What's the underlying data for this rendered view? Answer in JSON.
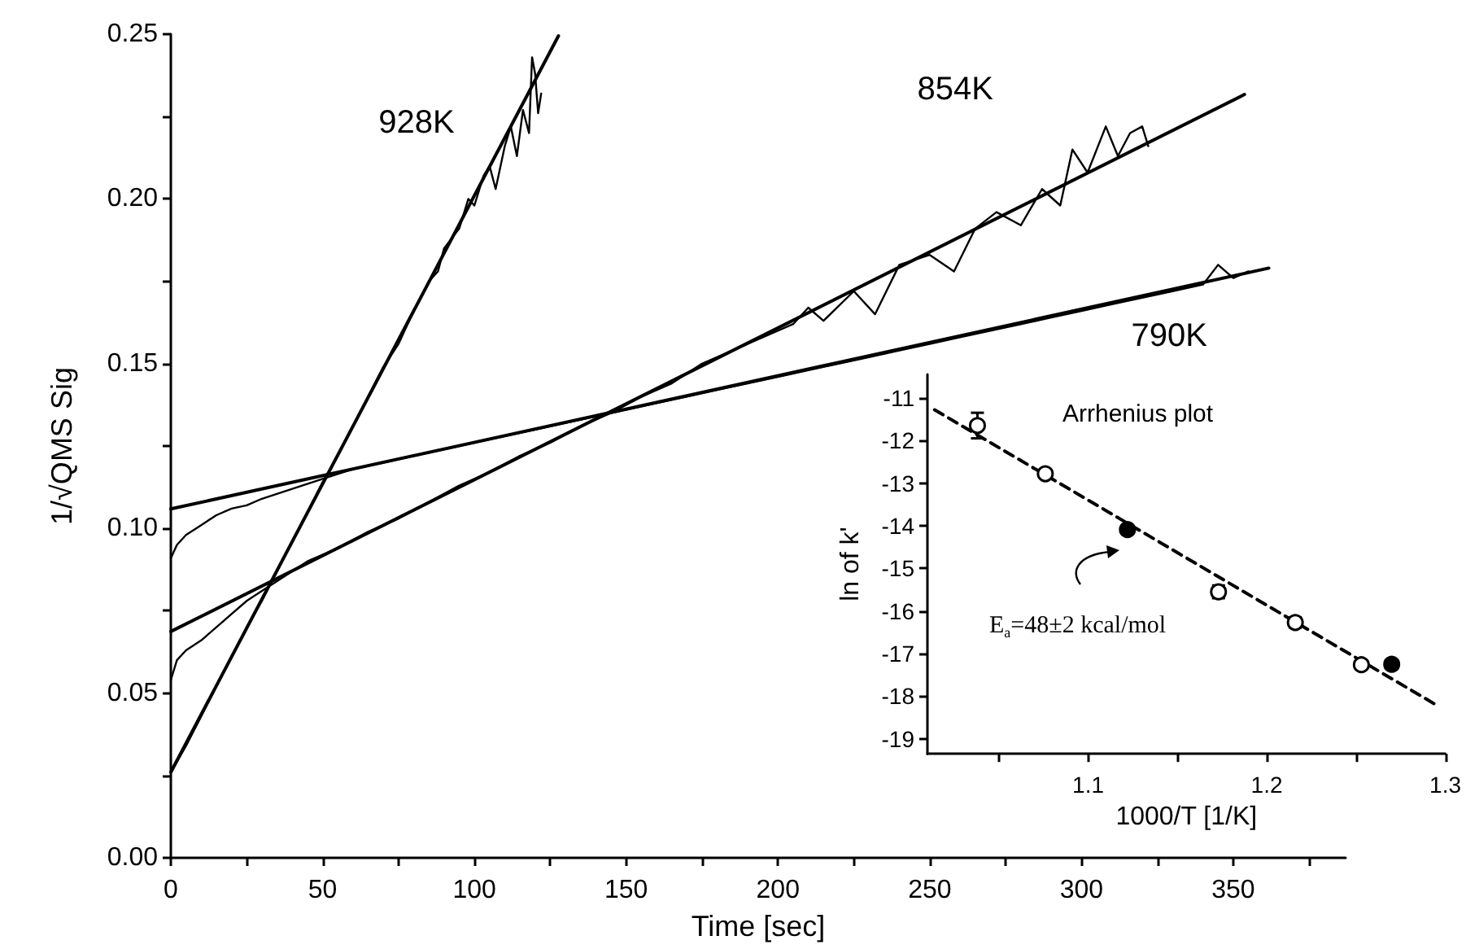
{
  "chart_data": [
    {
      "type": "line",
      "xlabel": "Time [sec]",
      "ylabel": "1/√QMS Sig",
      "xlim": [
        0,
        387
      ],
      "ylim": [
        0,
        0.25
      ],
      "xticks": [
        0,
        {
          "value": 25,
          "label": null
        },
        50,
        {
          "value": 75,
          "label": null
        },
        100,
        {
          "value": 125,
          "label": null
        },
        150,
        {
          "value": 175,
          "label": null
        },
        200,
        {
          "value": 225,
          "label": null
        },
        250,
        {
          "value": 275,
          "label": null
        },
        300,
        {
          "value": 325,
          "label": null
        },
        350,
        {
          "value": 375,
          "label": null
        }
      ],
      "yticks": [
        {
          "value": 0,
          "label": "0.00"
        },
        {
          "value": 0.025,
          "label": null
        },
        {
          "value": 0.05,
          "label": "0.05"
        },
        {
          "value": 0.075,
          "label": null
        },
        {
          "value": 0.1,
          "label": "0.10"
        },
        {
          "value": 0.125,
          "label": null
        },
        {
          "value": 0.15,
          "label": "0.15"
        },
        {
          "value": 0.175,
          "label": null
        },
        {
          "value": 0.2,
          "label": "0.20"
        },
        {
          "value": 0.225,
          "label": null
        },
        {
          "value": 0.25,
          "label": "0.25"
        }
      ],
      "marker": "none",
      "line_style": "solid",
      "series": [
        {
          "name": "928K",
          "color": "#000000",
          "x": [
            0,
            5,
            10,
            15,
            20,
            25,
            30,
            35,
            40,
            45,
            50,
            55,
            60,
            65,
            70,
            75,
            80,
            85,
            88,
            90,
            95,
            98,
            100,
            103,
            105,
            107,
            110,
            112,
            114,
            116,
            118,
            119,
            120,
            121,
            122
          ],
          "values": [
            0.026,
            0.034,
            0.043,
            0.052,
            0.061,
            0.07,
            0.078,
            0.087,
            0.096,
            0.105,
            0.114,
            0.122,
            0.131,
            0.14,
            0.149,
            0.156,
            0.166,
            0.175,
            0.178,
            0.185,
            0.191,
            0.2,
            0.198,
            0.207,
            0.21,
            0.203,
            0.216,
            0.222,
            0.213,
            0.227,
            0.22,
            0.243,
            0.238,
            0.226,
            0.232
          ]
        },
        {
          "name": "854K",
          "color": "#000000",
          "x": [
            0,
            2,
            5,
            10,
            15,
            20,
            25,
            30,
            35,
            45,
            55,
            65,
            75,
            85,
            95,
            105,
            115,
            125,
            135,
            145,
            155,
            165,
            175,
            185,
            195,
            205,
            210,
            215,
            225,
            232,
            240,
            250,
            258,
            265,
            272,
            280,
            287,
            293,
            297,
            302,
            308,
            312,
            316,
            320,
            322
          ],
          "values": [
            0.054,
            0.06,
            0.063,
            0.066,
            0.07,
            0.074,
            0.078,
            0.081,
            0.084,
            0.09,
            0.094,
            0.099,
            0.103,
            0.108,
            0.113,
            0.117,
            0.122,
            0.126,
            0.131,
            0.135,
            0.14,
            0.144,
            0.15,
            0.154,
            0.158,
            0.162,
            0.167,
            0.163,
            0.172,
            0.165,
            0.18,
            0.183,
            0.178,
            0.191,
            0.196,
            0.192,
            0.203,
            0.198,
            0.215,
            0.208,
            0.222,
            0.213,
            0.22,
            0.222,
            0.216
          ]
        },
        {
          "name": "790K",
          "color": "#000000",
          "x": [
            0,
            2,
            5,
            10,
            15,
            20,
            25,
            30,
            40,
            50,
            60,
            70,
            80,
            90,
            100,
            110,
            120,
            130,
            140,
            150,
            160,
            170,
            180,
            190,
            200,
            210,
            220,
            230,
            240,
            250,
            260,
            270,
            280,
            290,
            300,
            310,
            320,
            330,
            340,
            345,
            350,
            355
          ],
          "values": [
            0.091,
            0.095,
            0.098,
            0.101,
            0.104,
            0.106,
            0.107,
            0.109,
            0.112,
            0.115,
            0.118,
            0.12,
            0.122,
            0.124,
            0.126,
            0.128,
            0.13,
            0.132,
            0.134,
            0.136,
            0.138,
            0.14,
            0.142,
            0.144,
            0.146,
            0.148,
            0.15,
            0.152,
            0.154,
            0.156,
            0.158,
            0.16,
            0.162,
            0.164,
            0.166,
            0.168,
            0.17,
            0.172,
            0.174,
            0.18,
            0.176,
            0.178
          ]
        },
        {
          "color": "#000000",
          "x": [
            0,
            127.7
          ],
          "values": [
            0.026,
            0.2495
          ]
        },
        {
          "color": "#000000",
          "x": [
            0,
            353.7
          ],
          "values": [
            0.0687,
            0.2317
          ]
        },
        {
          "color": "#000000",
          "x": [
            0,
            361.7
          ],
          "values": [
            0.1059,
            0.179
          ]
        }
      ]
    },
    {
      "type": "scatter",
      "xlabel": "1000/T [1/K]",
      "ylabel": "ln of k'",
      "xlim": [
        1.01,
        1.3
      ],
      "ylim": [
        -19.35,
        -10.45
      ],
      "xticks": [
        {
          "value": 1.05,
          "label": null
        },
        1.1,
        {
          "value": 1.15,
          "label": null
        },
        1.2,
        {
          "value": 1.25,
          "label": null
        },
        1.3
      ],
      "yticks": [
        -19,
        -18,
        -17,
        -16,
        -15,
        -14,
        -13,
        -12,
        -11
      ],
      "marker": "circle",
      "annotations": [
        "Arrhenius plot",
        "E$_{a}$=48±2 kcal/mol"
      ],
      "series": [
        {
          "type": "scatter",
          "color": "#000000",
          "x": [
            1.038,
            1.076,
            1.122,
            1.173,
            1.216,
            1.253,
            1.27
          ],
          "values": [
            -11.65,
            -12.78,
            -14.09,
            -15.55,
            -16.27,
            -17.26,
            -17.25
          ],
          "colors": [
            "#ffffff",
            "#ffffff",
            "#000000",
            "#ffffff",
            "#ffffff",
            "#ffffff",
            "#000000"
          ],
          "errors": [
            0.3,
            0.1,
            0.1,
            0.15,
            0.12,
            0.1,
            0.1
          ]
        },
        {
          "type": "line",
          "color": "#000000",
          "line_style": "dashed",
          "marker": "none",
          "x": [
            1.014,
            1.294
          ],
          "values": [
            -11.28,
            -18.18
          ]
        }
      ]
    }
  ]
}
